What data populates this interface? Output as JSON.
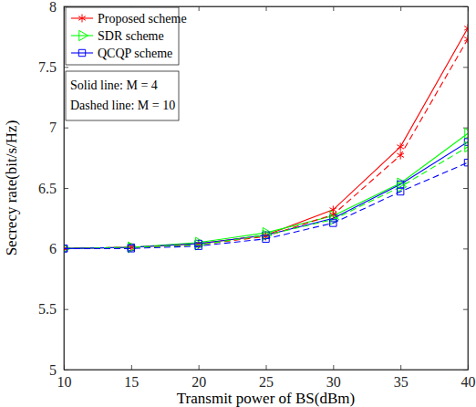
{
  "chart_data": {
    "type": "line",
    "x_label": "Transmit power of BS(dBm)",
    "y_label": "Secrecy rate(bit/s/Hz)",
    "x": [
      10,
      15,
      20,
      25,
      30,
      35,
      40
    ],
    "xlim": [
      10,
      40
    ],
    "xticks": [
      10,
      15,
      20,
      25,
      30,
      35,
      40
    ],
    "ylim": [
      5,
      8
    ],
    "yticks": [
      5,
      5.5,
      6,
      6.5,
      7,
      7.5,
      8
    ],
    "grid": false,
    "legend": "upper left",
    "annotations": [
      "Solid line: M = 4",
      "Dashed line: M = 10"
    ],
    "series": [
      {
        "name": "Proposed scheme",
        "color": "#ff0000",
        "marker": "asterisk",
        "line_style": "solid",
        "values": [
          6.0,
          6.01,
          6.04,
          6.11,
          6.32,
          6.84,
          7.82
        ]
      },
      {
        "name": "SDR scheme",
        "color": "#00ff00",
        "marker": "triangle-right",
        "line_style": "solid",
        "values": [
          6.0,
          6.01,
          6.05,
          6.13,
          6.27,
          6.54,
          6.95
        ]
      },
      {
        "name": "QCQP scheme",
        "color": "#0000ff",
        "marker": "square",
        "line_style": "solid",
        "values": [
          6.0,
          6.01,
          6.04,
          6.11,
          6.25,
          6.53,
          6.88
        ]
      },
      {
        "name": "Proposed scheme",
        "color": "#ff0000",
        "marker": "asterisk",
        "line_style": "dashed",
        "values": [
          6.0,
          6.01,
          6.03,
          6.1,
          6.28,
          6.77,
          7.73
        ]
      },
      {
        "name": "SDR scheme",
        "color": "#00ff00",
        "marker": "triangle-right",
        "line_style": "dashed",
        "values": [
          6.0,
          6.01,
          6.03,
          6.11,
          6.24,
          6.51,
          6.84
        ]
      },
      {
        "name": "QCQP scheme",
        "color": "#0000ff",
        "marker": "square",
        "line_style": "dashed",
        "values": [
          6.0,
          6.0,
          6.02,
          6.08,
          6.21,
          6.47,
          6.71
        ]
      }
    ]
  }
}
